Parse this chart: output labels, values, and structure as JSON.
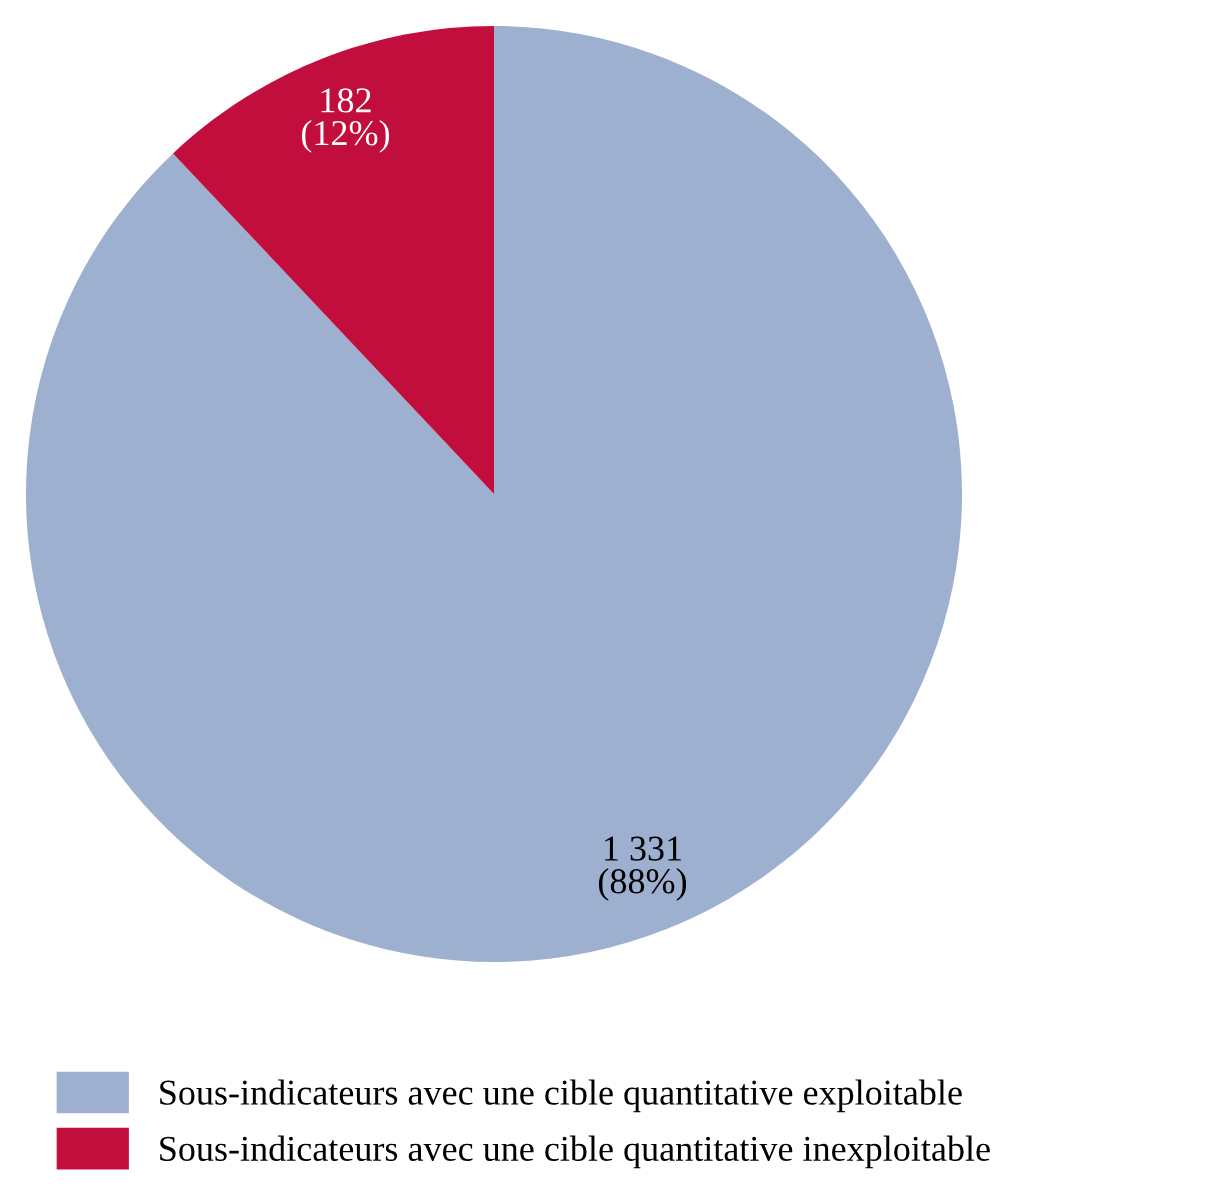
{
  "chart_data": {
    "type": "pie",
    "categories": [
      "Sous-indicateurs avec une cible quantitative exploitable",
      "Sous-indicateurs avec une cible quantitative inexploitable"
    ],
    "values": [
      1331,
      182
    ],
    "colors": [
      "#9eb0cf",
      "#c20e3d"
    ],
    "value_labels": [
      "1 331\n(88%)",
      "182\n(12%)"
    ],
    "legend": "bottom left"
  }
}
